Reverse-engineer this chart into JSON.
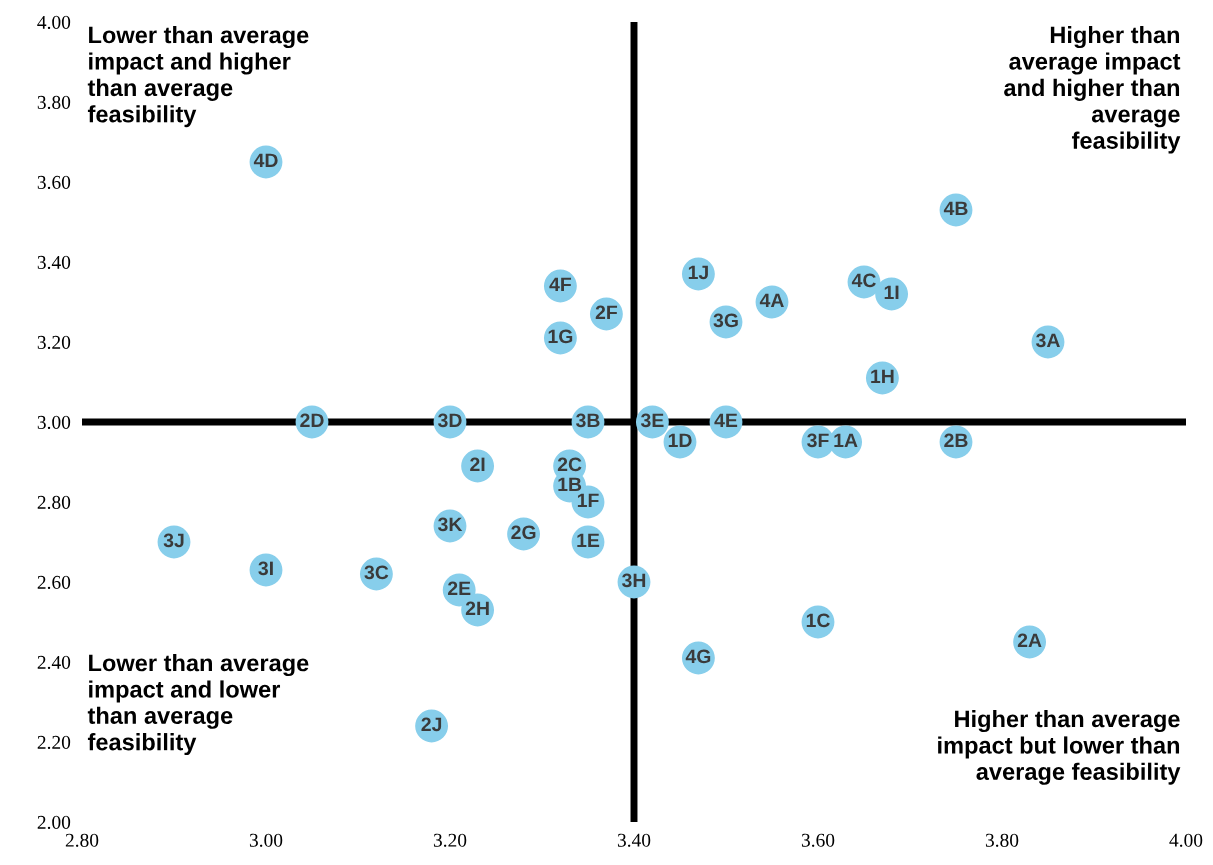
{
  "chart_data": {
    "type": "scatter",
    "x": [
      3.0,
      3.75,
      3.47,
      3.32,
      3.65,
      3.68,
      3.37,
      3.55,
      3.5,
      3.32,
      3.85,
      3.67,
      3.05,
      3.2,
      3.35,
      3.42,
      3.5,
      3.45,
      3.6,
      3.63,
      3.75,
      3.23,
      3.33,
      3.33,
      3.35,
      3.2,
      3.28,
      3.35,
      2.9,
      3.0,
      3.12,
      3.21,
      3.4,
      3.23,
      3.6,
      3.83,
      3.47,
      3.18
    ],
    "series": [
      {
        "color": "#87ceeb",
        "values": [
          3.65,
          3.53,
          3.37,
          3.34,
          3.35,
          3.32,
          3.27,
          3.3,
          3.25,
          3.21,
          3.2,
          3.11,
          3.0,
          3.0,
          3.0,
          3.0,
          3.0,
          2.95,
          2.95,
          2.95,
          2.95,
          2.89,
          2.89,
          2.84,
          2.8,
          2.74,
          2.72,
          2.7,
          2.7,
          2.63,
          2.62,
          2.58,
          2.6,
          2.53,
          2.5,
          2.45,
          2.41,
          2.24
        ]
      }
    ],
    "annotations": [
      "Lower than average impact and higher than average feasibility",
      "Higher than average impact and higher than average feasibility",
      "Lower than average impact and lower than average feasibility",
      "Higher than average impact but lower than average feasibility",
      {
        "text": "4D",
        "x": 3.0,
        "y": 3.65
      },
      {
        "text": "4B",
        "x": 3.75,
        "y": 3.53
      },
      {
        "text": "1J",
        "x": 3.47,
        "y": 3.37
      },
      {
        "text": "4F",
        "x": 3.32,
        "y": 3.34
      },
      {
        "text": "4C",
        "x": 3.65,
        "y": 3.35
      },
      {
        "text": "1I",
        "x": 3.68,
        "y": 3.32
      },
      {
        "text": "2F",
        "x": 3.37,
        "y": 3.27
      },
      {
        "text": "4A",
        "x": 3.55,
        "y": 3.3
      },
      {
        "text": "3G",
        "x": 3.5,
        "y": 3.25
      },
      {
        "text": "1G",
        "x": 3.32,
        "y": 3.21
      },
      {
        "text": "3A",
        "x": 3.85,
        "y": 3.2
      },
      {
        "text": "1H",
        "x": 3.67,
        "y": 3.11
      },
      {
        "text": "2D",
        "x": 3.05,
        "y": 3.0
      },
      {
        "text": "3D",
        "x": 3.2,
        "y": 3.0
      },
      {
        "text": "3B",
        "x": 3.35,
        "y": 3.0
      },
      {
        "text": "3E",
        "x": 3.42,
        "y": 3.0
      },
      {
        "text": "4E",
        "x": 3.5,
        "y": 3.0
      },
      {
        "text": "1D",
        "x": 3.45,
        "y": 2.95
      },
      {
        "text": "3F",
        "x": 3.6,
        "y": 2.95
      },
      {
        "text": "1A",
        "x": 3.63,
        "y": 2.95
      },
      {
        "text": "2B",
        "x": 3.75,
        "y": 2.95
      },
      {
        "text": "2I",
        "x": 3.23,
        "y": 2.89
      },
      {
        "text": "2C",
        "x": 3.33,
        "y": 2.89
      },
      {
        "text": "1B",
        "x": 3.33,
        "y": 2.84
      },
      {
        "text": "1F",
        "x": 3.35,
        "y": 2.8
      },
      {
        "text": "3K",
        "x": 3.2,
        "y": 2.74
      },
      {
        "text": "2G",
        "x": 3.28,
        "y": 2.72
      },
      {
        "text": "1E",
        "x": 3.35,
        "y": 2.7
      },
      {
        "text": "3J",
        "x": 2.9,
        "y": 2.7
      },
      {
        "text": "3I",
        "x": 3.0,
        "y": 2.63
      },
      {
        "text": "3C",
        "x": 3.12,
        "y": 2.62
      },
      {
        "text": "2E",
        "x": 3.21,
        "y": 2.58
      },
      {
        "text": "3H",
        "x": 3.4,
        "y": 2.6
      },
      {
        "text": "2H",
        "x": 3.23,
        "y": 2.53
      },
      {
        "text": "1C",
        "x": 3.6,
        "y": 2.5
      },
      {
        "text": "2A",
        "x": 3.83,
        "y": 2.45
      },
      {
        "text": "4G",
        "x": 3.47,
        "y": 2.41
      },
      {
        "text": "2J",
        "x": 3.18,
        "y": 2.24
      }
    ],
    "xlim": [
      2.8,
      4.0
    ],
    "xticks": [
      {
        "value": 2.8,
        "label": "2.80"
      },
      {
        "value": 3.0,
        "label": "3.00"
      },
      {
        "value": 3.2,
        "label": "3.20"
      },
      {
        "value": 3.4,
        "label": "3.40"
      },
      {
        "value": 3.6,
        "label": "3.60"
      },
      {
        "value": 3.8,
        "label": "3.80"
      },
      {
        "value": 4.0,
        "label": "4.00"
      }
    ],
    "ylim": [
      2.0,
      4.0
    ],
    "yticks": [
      {
        "value": 2.0,
        "label": "2.00"
      },
      {
        "value": 2.2,
        "label": "2.20"
      },
      {
        "value": 2.4,
        "label": "2.40"
      },
      {
        "value": 2.6,
        "label": "2.60"
      },
      {
        "value": 2.8,
        "label": "2.80"
      },
      {
        "value": 3.0,
        "label": "3.00"
      },
      {
        "value": 3.2,
        "label": "3.20"
      },
      {
        "value": 3.4,
        "label": "3.40"
      },
      {
        "value": 3.6,
        "label": "3.60"
      },
      {
        "value": 3.8,
        "label": "3.80"
      },
      {
        "value": 4.0,
        "label": "4.00"
      }
    ],
    "ref_lines": [
      {
        "axis": "x",
        "value": 3.4,
        "color": "#000000"
      },
      {
        "axis": "y",
        "value": 3.0,
        "color": "#000000"
      }
    ],
    "marker": "circle",
    "grid": false,
    "legend": false
  }
}
